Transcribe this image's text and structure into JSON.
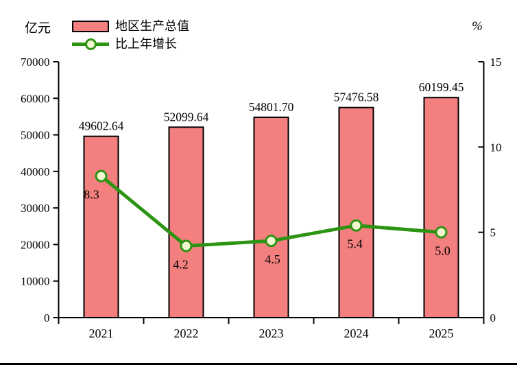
{
  "chart_data": {
    "type": "bar+line combo",
    "categories": [
      "2021",
      "2022",
      "2023",
      "2024",
      "2025"
    ],
    "series": [
      {
        "name": "地区生产总值",
        "type": "bar",
        "axis": "left",
        "unit": "亿元",
        "values": [
          49602.64,
          52099.64,
          54801.7,
          57476.58,
          60199.45
        ],
        "labels": [
          "49602.64",
          "52099.64",
          "54801.70",
          "57476.58",
          "60199.45"
        ],
        "fill_color": "#F37F7F",
        "border_color": "#000000"
      },
      {
        "name": "比上年增长",
        "type": "line",
        "axis": "right",
        "unit": "%",
        "values": [
          8.3,
          4.2,
          4.5,
          5.4,
          5.0
        ],
        "labels": [
          "8.3",
          "4.2",
          "4.5",
          "5.4",
          "5.0"
        ],
        "line_color": "#2C9412",
        "marker_fill": "#F2F7D0"
      }
    ],
    "left_axis": {
      "title": "亿元",
      "min": 0,
      "max": 70000,
      "ticks": [
        0,
        10000,
        20000,
        30000,
        40000,
        50000,
        60000,
        70000
      ]
    },
    "right_axis": {
      "title": "%",
      "min": 0,
      "max": 15,
      "ticks": [
        0,
        5,
        10,
        15
      ]
    },
    "axis_color": "#000000",
    "text_color": "#000000",
    "legend_position": "top-left",
    "grid": false,
    "title": ""
  }
}
